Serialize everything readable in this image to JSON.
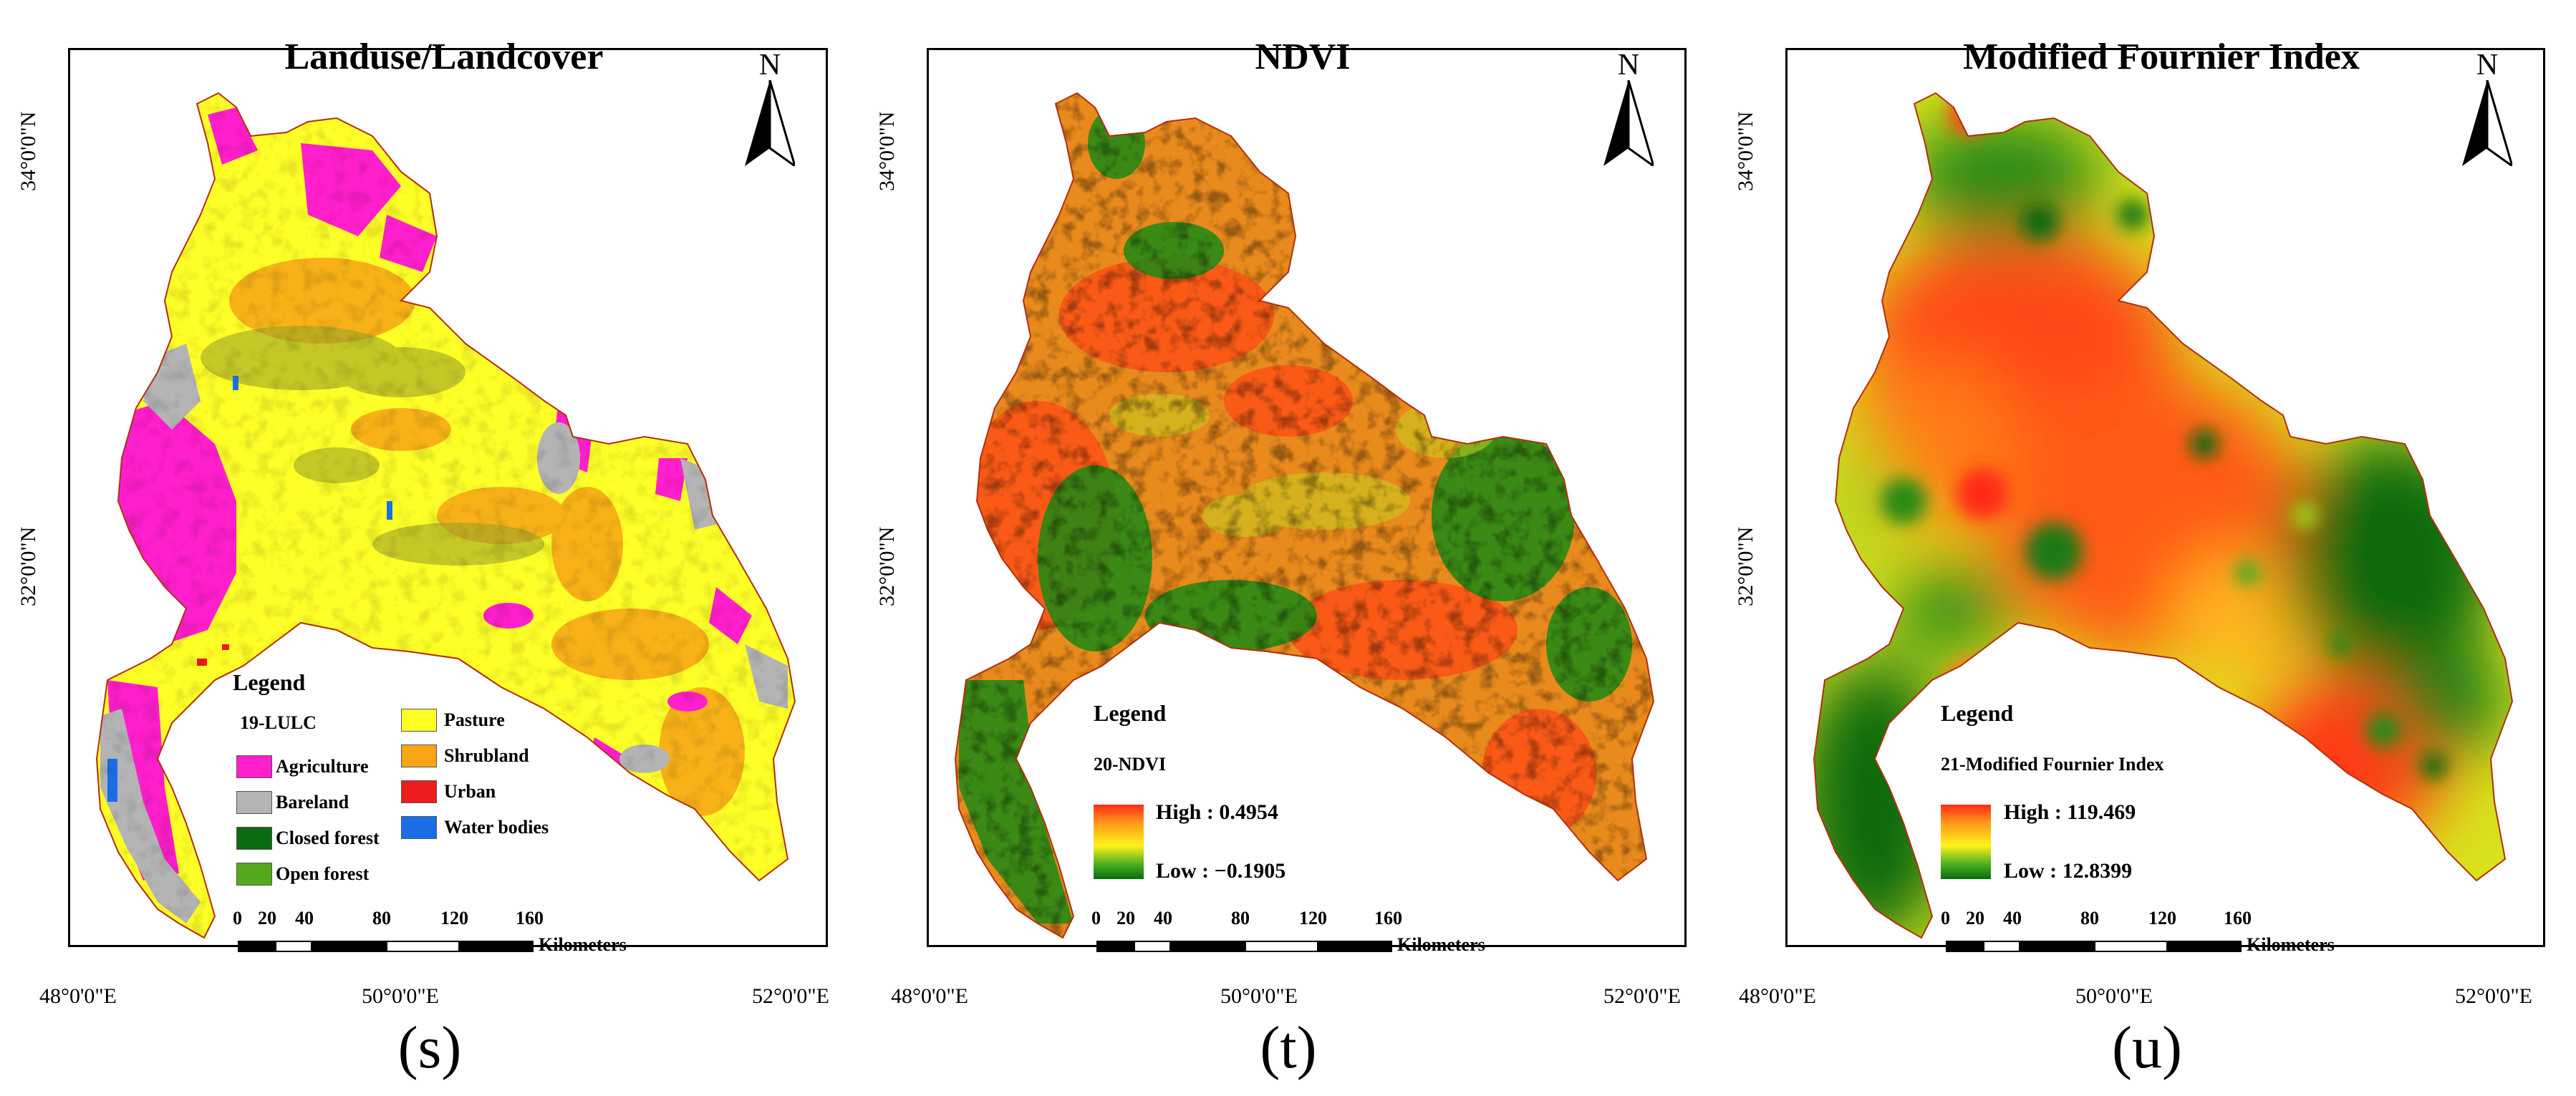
{
  "panels": [
    {
      "title": "Landuse/Landcover",
      "label": "(s)",
      "north": "N",
      "lat_ticks": [
        "34°0'0\"N",
        "32°0'0\"N"
      ],
      "lon_ticks": [
        "48°0'0\"E",
        "50°0'0\"E",
        "52°0'0\"E"
      ],
      "legend": {
        "heading": "Legend",
        "layer": "19-LULC",
        "classes": [
          {
            "label": "Agriculture",
            "color": "#ff1fcc"
          },
          {
            "label": "Bareland",
            "color": "#b4b4b4"
          },
          {
            "label": "Closed forest",
            "color": "#0a6b10"
          },
          {
            "label": "Open forest",
            "color": "#55a81c"
          },
          {
            "label": "Pasture",
            "color": "#ffff28"
          },
          {
            "label": "Shrubland",
            "color": "#f7a515"
          },
          {
            "label": "Urban",
            "color": "#ee1c1c"
          },
          {
            "label": "Water bodies",
            "color": "#1a6fe6"
          }
        ]
      },
      "scale": {
        "ticks": [
          "0",
          "20",
          "40",
          "80",
          "120",
          "160"
        ],
        "unit": "Kilometers"
      }
    },
    {
      "title": "NDVI",
      "label": "(t)",
      "north": "N",
      "lat_ticks": [
        "34°0'0\"N",
        "32°0'0\"N"
      ],
      "lon_ticks": [
        "48°0'0\"E",
        "50°0'0\"E",
        "52°0'0\"E"
      ],
      "legend": {
        "heading": "Legend",
        "layer": "20-NDVI",
        "high": "High : 0.4954",
        "low": "Low : −0.1905",
        "high_value": 0.4954,
        "low_value": -0.1905
      },
      "scale": {
        "ticks": [
          "0",
          "20",
          "40",
          "80",
          "120",
          "160"
        ],
        "unit": "Kilometers"
      }
    },
    {
      "title": "Modified Fournier Index",
      "label": "(u)",
      "north": "N",
      "lat_ticks": [
        "34°0'0\"N",
        "32°0'0\"N"
      ],
      "lon_ticks": [
        "48°0'0\"E",
        "50°0'0\"E",
        "52°0'0\"E"
      ],
      "legend": {
        "heading": "Legend",
        "layer": "21-Modified Fournier Index",
        "high": "High : 119.469",
        "low": "Low : 12.8399",
        "high_value": 119.469,
        "low_value": 12.8399
      },
      "scale": {
        "ticks": [
          "0",
          "20",
          "40",
          "80",
          "120",
          "160"
        ],
        "unit": "Kilometers"
      }
    }
  ],
  "colors": {
    "ramp_high": "#ff2a1a",
    "ramp_mid": "#fff21a",
    "ramp_low": "#0a6b10"
  }
}
